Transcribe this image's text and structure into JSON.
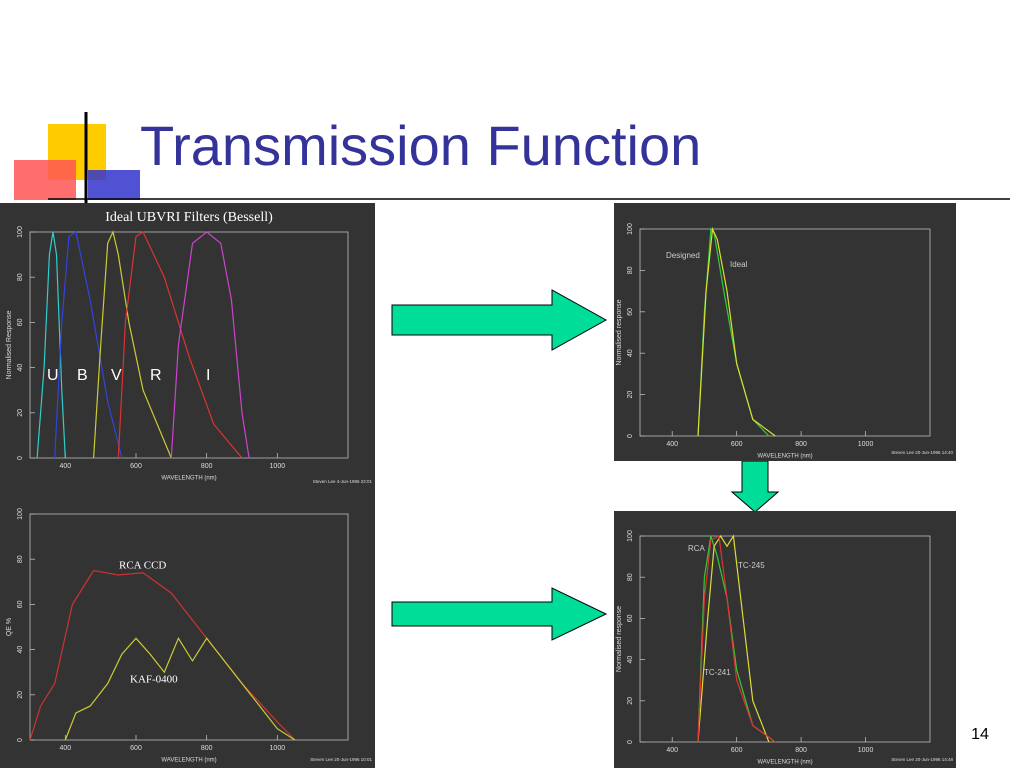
{
  "slide": {
    "title": "Transmission Function",
    "page_number": "14"
  },
  "chart_data": [
    {
      "type": "line",
      "title": "Ideal UBVRI Filters (Bessell)",
      "xlabel": "WAVELENGTH (nm)",
      "ylabel": "Normalised Response",
      "credit": "Steven Lee 4-Jun-1996 22:01",
      "xlim": [
        300,
        1200
      ],
      "ylim": [
        0,
        100
      ],
      "xticks": [
        400,
        600,
        800,
        1000
      ],
      "yticks": [
        0,
        20,
        40,
        60,
        80,
        100
      ],
      "series": [
        {
          "name": "U",
          "color": "#33cccc",
          "x": [
            320,
            340,
            355,
            365,
            375,
            390,
            400
          ],
          "values": [
            0,
            40,
            90,
            100,
            90,
            30,
            0
          ]
        },
        {
          "name": "B",
          "color": "#3344dd",
          "x": [
            370,
            390,
            410,
            430,
            470,
            520,
            560
          ],
          "values": [
            0,
            60,
            98,
            100,
            70,
            25,
            0
          ]
        },
        {
          "name": "V",
          "color": "#cccc33",
          "x": [
            480,
            500,
            520,
            535,
            550,
            580,
            620,
            700
          ],
          "values": [
            0,
            50,
            95,
            100,
            90,
            60,
            30,
            0
          ]
        },
        {
          "name": "R",
          "color": "#dd3333",
          "x": [
            550,
            570,
            600,
            620,
            680,
            750,
            820,
            900
          ],
          "values": [
            0,
            60,
            98,
            100,
            80,
            45,
            15,
            0
          ]
        },
        {
          "name": "I",
          "color": "#cc44cc",
          "x": [
            700,
            720,
            760,
            800,
            840,
            870,
            900,
            920
          ],
          "values": [
            0,
            50,
            95,
            100,
            95,
            70,
            20,
            0
          ]
        }
      ]
    },
    {
      "type": "line",
      "xlabel": "WAVELENGTH (nm)",
      "ylabel": "QE %",
      "credit": "Steven Lee 20-Jun-1996 10:01",
      "xlim": [
        300,
        1200
      ],
      "ylim": [
        0,
        100
      ],
      "xticks": [
        400,
        600,
        800,
        1000
      ],
      "yticks": [
        0,
        20,
        40,
        60,
        80,
        100
      ],
      "series": [
        {
          "name": "RCA CCD",
          "color": "#cc3333",
          "x": [
            300,
            330,
            370,
            420,
            480,
            550,
            620,
            700,
            800,
            900,
            1000,
            1050
          ],
          "values": [
            0,
            15,
            25,
            60,
            75,
            73,
            74,
            65,
            45,
            25,
            8,
            0
          ]
        },
        {
          "name": "KAF-0400",
          "color": "#cccc33",
          "x": [
            400,
            430,
            470,
            520,
            560,
            600,
            640,
            680,
            720,
            760,
            800,
            850,
            900,
            950,
            1000,
            1050
          ],
          "values": [
            0,
            12,
            15,
            25,
            38,
            45,
            38,
            30,
            45,
            35,
            45,
            35,
            25,
            15,
            5,
            0
          ]
        }
      ]
    },
    {
      "type": "line",
      "xlabel": "WAVELENGTH (nm)",
      "ylabel": "Normalised response",
      "credit": "Steven Lee 20-Jun-1996 14:40",
      "xlim": [
        300,
        1200
      ],
      "ylim": [
        0,
        100
      ],
      "xticks": [
        400,
        600,
        800,
        1000
      ],
      "yticks": [
        0,
        20,
        40,
        60,
        80,
        100
      ],
      "series": [
        {
          "name": "Designed",
          "color": "#33cc33",
          "x": [
            480,
            500,
            520,
            530,
            560,
            600,
            650,
            700
          ],
          "values": [
            0,
            60,
            100,
            98,
            70,
            35,
            8,
            0
          ]
        },
        {
          "name": "Ideal",
          "color": "#dddd33",
          "x": [
            480,
            505,
            525,
            540,
            570,
            600,
            650,
            720
          ],
          "values": [
            0,
            70,
            100,
            95,
            70,
            35,
            8,
            0
          ]
        }
      ]
    },
    {
      "type": "line",
      "xlabel": "WAVELENGTH (nm)",
      "ylabel": "Normalised response",
      "credit": "Steven Lee 20-Jun-1996 14:48",
      "xlim": [
        300,
        1200
      ],
      "ylim": [
        0,
        100
      ],
      "xticks": [
        400,
        600,
        800,
        1000
      ],
      "yticks": [
        0,
        20,
        40,
        60,
        80,
        100
      ],
      "series": [
        {
          "name": "RCA",
          "color": "#33cc33",
          "x": [
            480,
            500,
            520,
            540,
            570,
            600,
            650,
            720
          ],
          "values": [
            0,
            80,
            100,
            90,
            70,
            35,
            8,
            0
          ]
        },
        {
          "name": "TC-245",
          "color": "#dddd33",
          "x": [
            480,
            510,
            530,
            550,
            570,
            590,
            620,
            650,
            700
          ],
          "values": [
            0,
            60,
            95,
            100,
            95,
            100,
            60,
            20,
            0
          ]
        },
        {
          "name": "TC-241",
          "color": "#dd3333",
          "x": [
            480,
            500,
            520,
            545,
            570,
            600,
            650,
            720
          ],
          "values": [
            0,
            70,
            98,
            100,
            70,
            30,
            8,
            0
          ]
        }
      ]
    }
  ]
}
